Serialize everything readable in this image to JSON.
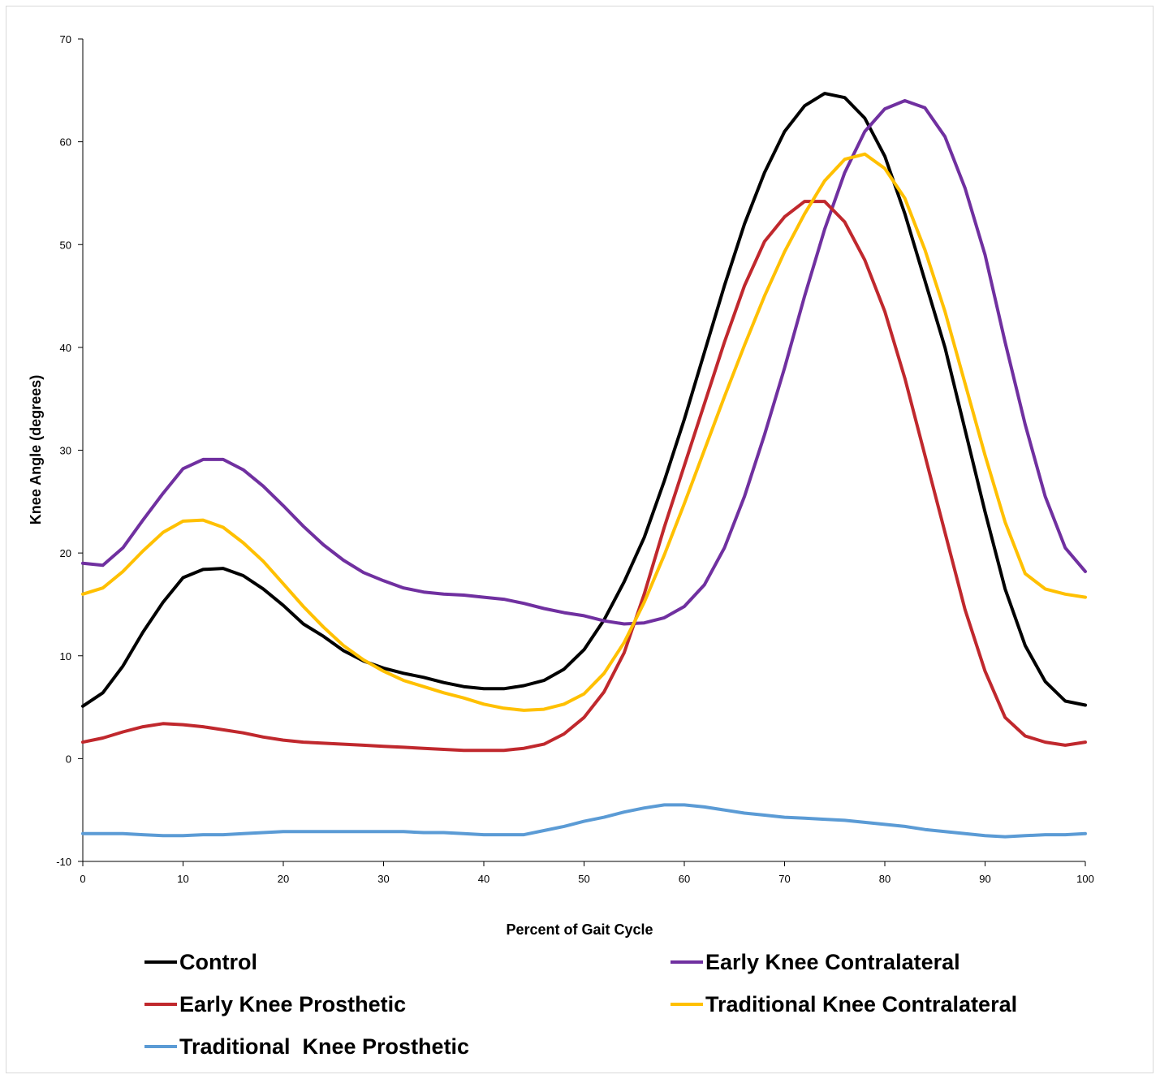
{
  "chart_data": {
    "type": "line",
    "xlabel": "Percent of Gait Cycle",
    "ylabel": "Knee Angle (degrees)",
    "xlim": [
      0,
      100
    ],
    "ylim": [
      -10,
      70
    ],
    "xticks": [
      0,
      10,
      20,
      30,
      40,
      50,
      60,
      70,
      80,
      90,
      100
    ],
    "yticks": [
      -10,
      0,
      10,
      20,
      30,
      40,
      50,
      60,
      70
    ],
    "grid": false,
    "legend_position": "bottom",
    "series": [
      {
        "name": "Control",
        "color": "#000000",
        "points": [
          [
            0,
            5.1
          ],
          [
            2,
            6.4
          ],
          [
            4,
            9.0
          ],
          [
            6,
            12.3
          ],
          [
            8,
            15.2
          ],
          [
            10,
            17.6
          ],
          [
            12,
            18.4
          ],
          [
            14,
            18.5
          ],
          [
            16,
            17.8
          ],
          [
            18,
            16.5
          ],
          [
            20,
            14.9
          ],
          [
            22,
            13.1
          ],
          [
            24,
            11.9
          ],
          [
            26,
            10.5
          ],
          [
            28,
            9.5
          ],
          [
            30,
            8.8
          ],
          [
            32,
            8.3
          ],
          [
            34,
            7.9
          ],
          [
            36,
            7.4
          ],
          [
            38,
            7.0
          ],
          [
            40,
            6.8
          ],
          [
            42,
            6.8
          ],
          [
            44,
            7.1
          ],
          [
            46,
            7.6
          ],
          [
            48,
            8.7
          ],
          [
            50,
            10.6
          ],
          [
            52,
            13.5
          ],
          [
            54,
            17.2
          ],
          [
            56,
            21.5
          ],
          [
            58,
            27.0
          ],
          [
            60,
            33.0
          ],
          [
            62,
            39.5
          ],
          [
            64,
            46.0
          ],
          [
            66,
            52.0
          ],
          [
            68,
            57.0
          ],
          [
            70,
            61.0
          ],
          [
            72,
            63.5
          ],
          [
            74,
            64.7
          ],
          [
            76,
            64.3
          ],
          [
            78,
            62.3
          ],
          [
            80,
            58.6
          ],
          [
            82,
            53.0
          ],
          [
            84,
            46.5
          ],
          [
            86,
            40.0
          ],
          [
            88,
            32.0
          ],
          [
            90,
            24.0
          ],
          [
            92,
            16.5
          ],
          [
            94,
            11.0
          ],
          [
            96,
            7.5
          ],
          [
            98,
            5.6
          ],
          [
            100,
            5.2
          ]
        ]
      },
      {
        "name": "Early Knee Contralateral",
        "color": "#7030a0",
        "points": [
          [
            0,
            19.0
          ],
          [
            2,
            18.8
          ],
          [
            4,
            20.5
          ],
          [
            6,
            23.2
          ],
          [
            8,
            25.8
          ],
          [
            10,
            28.2
          ],
          [
            12,
            29.1
          ],
          [
            14,
            29.1
          ],
          [
            16,
            28.1
          ],
          [
            18,
            26.5
          ],
          [
            20,
            24.6
          ],
          [
            22,
            22.6
          ],
          [
            24,
            20.8
          ],
          [
            26,
            19.3
          ],
          [
            28,
            18.1
          ],
          [
            30,
            17.3
          ],
          [
            32,
            16.6
          ],
          [
            34,
            16.2
          ],
          [
            36,
            16.0
          ],
          [
            38,
            15.9
          ],
          [
            40,
            15.7
          ],
          [
            42,
            15.5
          ],
          [
            44,
            15.1
          ],
          [
            46,
            14.6
          ],
          [
            48,
            14.2
          ],
          [
            50,
            13.9
          ],
          [
            52,
            13.4
          ],
          [
            54,
            13.1
          ],
          [
            56,
            13.2
          ],
          [
            58,
            13.7
          ],
          [
            60,
            14.8
          ],
          [
            62,
            16.9
          ],
          [
            64,
            20.5
          ],
          [
            66,
            25.5
          ],
          [
            68,
            31.5
          ],
          [
            70,
            38.0
          ],
          [
            72,
            45.0
          ],
          [
            74,
            51.5
          ],
          [
            76,
            57.0
          ],
          [
            78,
            61.0
          ],
          [
            80,
            63.2
          ],
          [
            82,
            64.0
          ],
          [
            84,
            63.3
          ],
          [
            86,
            60.5
          ],
          [
            88,
            55.5
          ],
          [
            90,
            49.0
          ],
          [
            92,
            40.5
          ],
          [
            94,
            32.5
          ],
          [
            96,
            25.5
          ],
          [
            98,
            20.5
          ],
          [
            100,
            18.2
          ]
        ]
      },
      {
        "name": "Early Knee Prosthetic",
        "color": "#c0282d",
        "points": [
          [
            0,
            1.6
          ],
          [
            2,
            2.0
          ],
          [
            4,
            2.6
          ],
          [
            6,
            3.1
          ],
          [
            8,
            3.4
          ],
          [
            10,
            3.3
          ],
          [
            12,
            3.1
          ],
          [
            14,
            2.8
          ],
          [
            16,
            2.5
          ],
          [
            18,
            2.1
          ],
          [
            20,
            1.8
          ],
          [
            22,
            1.6
          ],
          [
            24,
            1.5
          ],
          [
            26,
            1.4
          ],
          [
            28,
            1.3
          ],
          [
            30,
            1.2
          ],
          [
            32,
            1.1
          ],
          [
            34,
            1.0
          ],
          [
            36,
            0.9
          ],
          [
            38,
            0.8
          ],
          [
            40,
            0.8
          ],
          [
            42,
            0.8
          ],
          [
            44,
            1.0
          ],
          [
            46,
            1.4
          ],
          [
            48,
            2.4
          ],
          [
            50,
            4.0
          ],
          [
            52,
            6.5
          ],
          [
            54,
            10.3
          ],
          [
            56,
            16.0
          ],
          [
            58,
            22.5
          ],
          [
            60,
            28.5
          ],
          [
            62,
            34.5
          ],
          [
            64,
            40.5
          ],
          [
            66,
            46.0
          ],
          [
            68,
            50.3
          ],
          [
            70,
            52.7
          ],
          [
            72,
            54.2
          ],
          [
            74,
            54.2
          ],
          [
            76,
            52.2
          ],
          [
            78,
            48.5
          ],
          [
            80,
            43.5
          ],
          [
            82,
            37.0
          ],
          [
            84,
            29.5
          ],
          [
            86,
            22.0
          ],
          [
            88,
            14.5
          ],
          [
            90,
            8.5
          ],
          [
            92,
            4.0
          ],
          [
            94,
            2.2
          ],
          [
            96,
            1.6
          ],
          [
            98,
            1.3
          ],
          [
            100,
            1.6
          ]
        ]
      },
      {
        "name": "Traditional Knee Contralateral",
        "color": "#ffc000",
        "points": [
          [
            0,
            16.0
          ],
          [
            2,
            16.6
          ],
          [
            4,
            18.2
          ],
          [
            6,
            20.2
          ],
          [
            8,
            22.0
          ],
          [
            10,
            23.1
          ],
          [
            12,
            23.2
          ],
          [
            14,
            22.5
          ],
          [
            16,
            21.0
          ],
          [
            18,
            19.2
          ],
          [
            20,
            17.0
          ],
          [
            22,
            14.8
          ],
          [
            24,
            12.8
          ],
          [
            26,
            11.0
          ],
          [
            28,
            9.6
          ],
          [
            30,
            8.5
          ],
          [
            32,
            7.6
          ],
          [
            34,
            7.0
          ],
          [
            36,
            6.4
          ],
          [
            38,
            5.9
          ],
          [
            40,
            5.3
          ],
          [
            42,
            4.9
          ],
          [
            44,
            4.7
          ],
          [
            46,
            4.8
          ],
          [
            48,
            5.3
          ],
          [
            50,
            6.3
          ],
          [
            52,
            8.3
          ],
          [
            54,
            11.3
          ],
          [
            56,
            15.2
          ],
          [
            58,
            19.8
          ],
          [
            60,
            24.8
          ],
          [
            62,
            30.0
          ],
          [
            64,
            35.2
          ],
          [
            66,
            40.2
          ],
          [
            68,
            45.0
          ],
          [
            70,
            49.3
          ],
          [
            72,
            53.0
          ],
          [
            74,
            56.2
          ],
          [
            76,
            58.3
          ],
          [
            78,
            58.8
          ],
          [
            80,
            57.4
          ],
          [
            82,
            54.5
          ],
          [
            84,
            49.5
          ],
          [
            86,
            43.5
          ],
          [
            88,
            36.5
          ],
          [
            90,
            29.5
          ],
          [
            92,
            23.0
          ],
          [
            94,
            18.0
          ],
          [
            96,
            16.5
          ],
          [
            98,
            16.0
          ],
          [
            100,
            15.7
          ]
        ]
      },
      {
        "name": "Traditional  Knee Prosthetic",
        "color": "#5b9bd5",
        "points": [
          [
            0,
            -7.3
          ],
          [
            2,
            -7.3
          ],
          [
            4,
            -7.3
          ],
          [
            6,
            -7.4
          ],
          [
            8,
            -7.5
          ],
          [
            10,
            -7.5
          ],
          [
            12,
            -7.4
          ],
          [
            14,
            -7.4
          ],
          [
            16,
            -7.3
          ],
          [
            18,
            -7.2
          ],
          [
            20,
            -7.1
          ],
          [
            22,
            -7.1
          ],
          [
            24,
            -7.1
          ],
          [
            26,
            -7.1
          ],
          [
            28,
            -7.1
          ],
          [
            30,
            -7.1
          ],
          [
            32,
            -7.1
          ],
          [
            34,
            -7.2
          ],
          [
            36,
            -7.2
          ],
          [
            38,
            -7.3
          ],
          [
            40,
            -7.4
          ],
          [
            42,
            -7.4
          ],
          [
            44,
            -7.4
          ],
          [
            46,
            -7.0
          ],
          [
            48,
            -6.6
          ],
          [
            50,
            -6.1
          ],
          [
            52,
            -5.7
          ],
          [
            54,
            -5.2
          ],
          [
            56,
            -4.8
          ],
          [
            58,
            -4.5
          ],
          [
            60,
            -4.5
          ],
          [
            62,
            -4.7
          ],
          [
            64,
            -5.0
          ],
          [
            66,
            -5.3
          ],
          [
            68,
            -5.5
          ],
          [
            70,
            -5.7
          ],
          [
            72,
            -5.8
          ],
          [
            74,
            -5.9
          ],
          [
            76,
            -6.0
          ],
          [
            78,
            -6.2
          ],
          [
            80,
            -6.4
          ],
          [
            82,
            -6.6
          ],
          [
            84,
            -6.9
          ],
          [
            86,
            -7.1
          ],
          [
            88,
            -7.3
          ],
          [
            90,
            -7.5
          ],
          [
            92,
            -7.6
          ],
          [
            94,
            -7.5
          ],
          [
            96,
            -7.4
          ],
          [
            98,
            -7.4
          ],
          [
            100,
            -7.3
          ]
        ]
      }
    ]
  }
}
